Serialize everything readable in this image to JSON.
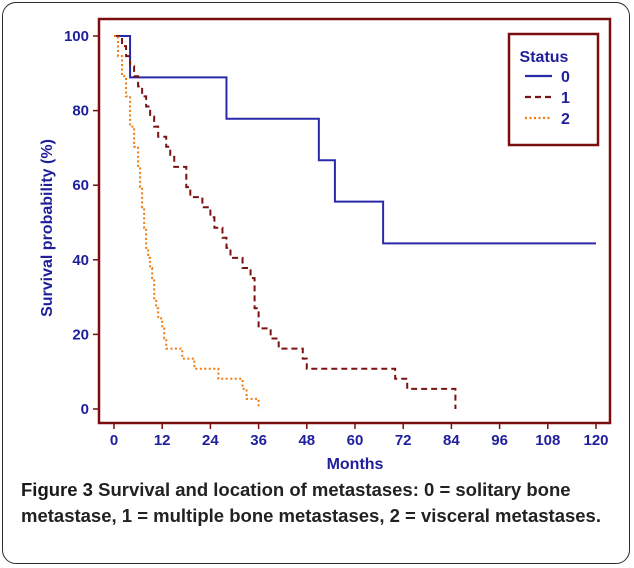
{
  "caption": {
    "label": "Figure 3",
    "text": "Survival and location of metastases: 0 = solitary bone metastase, 1 = multiple bone metastases, 2 = visceral metastases."
  },
  "chart_data": {
    "type": "line",
    "step": true,
    "xlabel": "Months",
    "ylabel": "Survival probability (%)",
    "xlim": [
      0,
      120
    ],
    "ylim": [
      0,
      100
    ],
    "xticks": [
      0,
      12,
      24,
      36,
      48,
      60,
      72,
      84,
      96,
      108,
      120
    ],
    "yticks": [
      0,
      20,
      40,
      60,
      80,
      100
    ],
    "grid": false,
    "legend": {
      "title": "Status",
      "placement": "top-right"
    },
    "colors": {
      "axis": "#7a0e0e",
      "tick_text": "#1f1f9c"
    },
    "series": [
      {
        "name": "0",
        "color": "#2a2aa8",
        "dash": "solid",
        "x": [
          0,
          4,
          28,
          51,
          55,
          67,
          120
        ],
        "y": [
          100,
          88.9,
          77.8,
          66.7,
          55.6,
          44.4,
          44.4
        ]
      },
      {
        "name": "1",
        "color": "#7a1212",
        "dash": "dashed",
        "x": [
          0,
          2,
          3,
          4,
          5,
          6,
          7,
          8,
          9,
          10,
          11,
          12,
          13,
          14,
          15,
          16,
          18,
          19,
          20,
          22,
          24,
          25,
          27,
          28,
          29,
          30,
          32,
          34,
          35,
          36,
          37,
          39,
          41,
          43,
          47,
          48,
          50,
          51,
          56,
          61,
          70,
          73,
          77,
          85
        ],
        "y": [
          100,
          97.3,
          94.6,
          91.9,
          89.2,
          86.5,
          83.8,
          81.1,
          78.4,
          75.7,
          73.0,
          73.0,
          70.3,
          67.6,
          64.9,
          64.9,
          59.5,
          56.8,
          56.8,
          54.1,
          51.4,
          48.6,
          45.9,
          43.2,
          40.5,
          40.5,
          37.8,
          35.1,
          27.0,
          21.6,
          21.6,
          18.9,
          16.2,
          16.2,
          13.5,
          10.8,
          10.8,
          10.8,
          10.8,
          10.8,
          8.1,
          5.4,
          5.4,
          0
        ]
      },
      {
        "name": "2",
        "color": "#f07a10",
        "dash": "dotted",
        "x": [
          0,
          1,
          2,
          3,
          4,
          5,
          6,
          6.5,
          7,
          7.5,
          8,
          8.5,
          9,
          9.5,
          10,
          10.5,
          11,
          12,
          12.5,
          13,
          14,
          15,
          17,
          20,
          22,
          26,
          30,
          32,
          33,
          34,
          36
        ],
        "y": [
          100,
          94.6,
          89.2,
          83.8,
          75.7,
          70.3,
          64.9,
          59.5,
          54.1,
          48.6,
          43.2,
          40.5,
          37.8,
          35.1,
          29.7,
          27.0,
          24.3,
          21.6,
          18.9,
          16.2,
          16.2,
          16.2,
          13.5,
          10.8,
          10.8,
          8.1,
          8.1,
          5.4,
          2.7,
          2.7,
          0
        ]
      }
    ]
  }
}
